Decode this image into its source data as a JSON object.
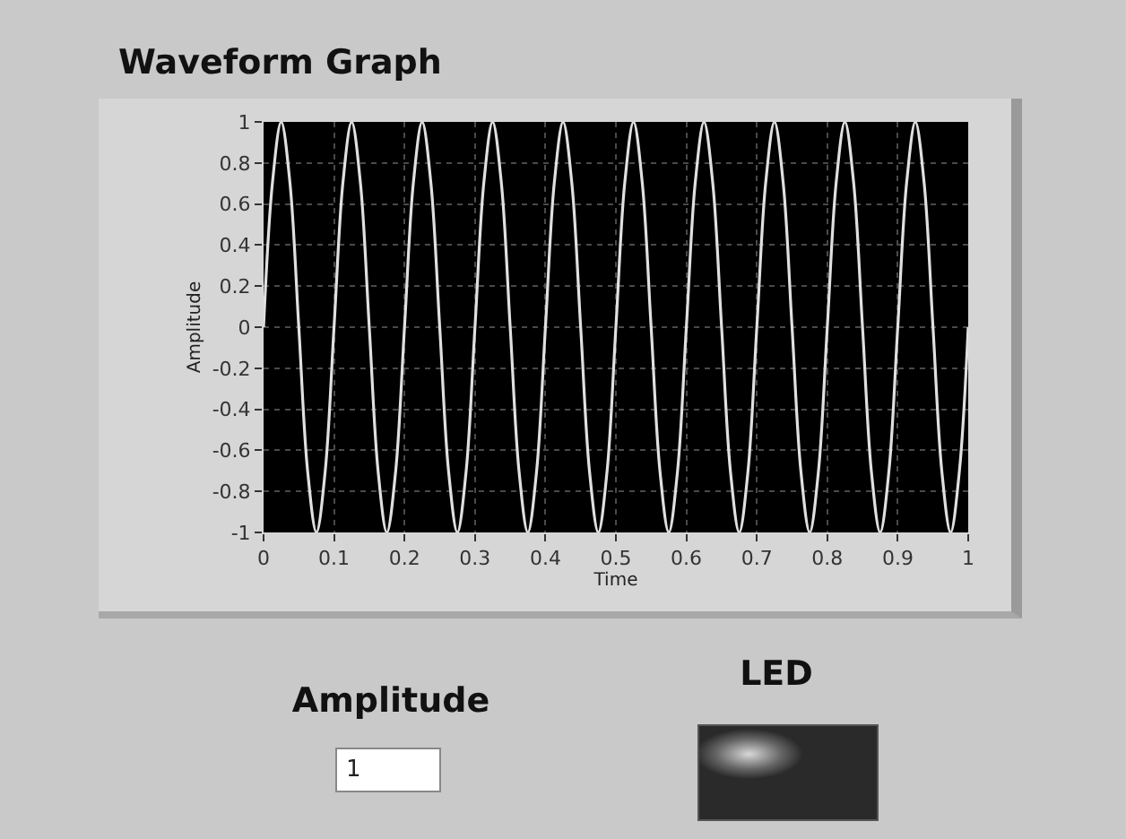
{
  "chart_data": {
    "type": "line",
    "title": "Waveform Graph",
    "xlabel": "Time",
    "ylabel": "Amplitude",
    "annotations": [
      "Amplitude",
      "1",
      "LED"
    ],
    "x": [
      0,
      0.0125,
      0.025,
      0.0375,
      0.05,
      0.0625,
      0.075,
      0.0875,
      0.1,
      0.1125,
      0.125,
      0.1375,
      0.15,
      0.1625,
      0.175,
      0.1875,
      0.2,
      0.2125,
      0.225,
      0.2375,
      0.25,
      0.2625,
      0.275,
      0.2875,
      0.3,
      0.3125,
      0.325,
      0.3375,
      0.35,
      0.3625,
      0.375,
      0.3875,
      0.4,
      0.4125,
      0.425,
      0.4375,
      0.45,
      0.4625,
      0.475,
      0.4875,
      0.5,
      0.5125,
      0.525,
      0.5375,
      0.55,
      0.5625,
      0.575,
      0.5875,
      0.6,
      0.6125,
      0.625,
      0.6375,
      0.65,
      0.6625,
      0.675,
      0.6875,
      0.7,
      0.7125,
      0.725,
      0.7375,
      0.75,
      0.7625,
      0.775,
      0.7875,
      0.8,
      0.8125,
      0.825,
      0.8375,
      0.85,
      0.8625,
      0.875,
      0.8875,
      0.9,
      0.9125,
      0.925,
      0.9375,
      0.95,
      0.9625,
      0.975,
      0.9875,
      1
    ],
    "series": [
      {
        "color": "#e0e0e0",
        "values": [
          0,
          0.7,
          1,
          0.7,
          0,
          -0.7,
          -1,
          -0.7,
          0,
          0.7,
          1,
          0.7,
          0,
          -0.7,
          -1,
          -0.7,
          0,
          0.7,
          1,
          0.7,
          0,
          -0.7,
          -1,
          -0.7,
          0,
          0.7,
          1,
          0.7,
          0,
          -0.7,
          -1,
          -0.7,
          0,
          0.7,
          1,
          0.7,
          0,
          -0.7,
          -1,
          -0.7,
          0,
          0.7,
          1,
          0.7,
          0,
          -0.7,
          -1,
          -0.7,
          0,
          0.7,
          1,
          0.7,
          0,
          -0.7,
          -1,
          -0.7,
          0,
          0.7,
          1,
          0.7,
          0,
          -0.7,
          -1,
          -0.7,
          0,
          0.7,
          1,
          0.7,
          0,
          -0.7,
          -1,
          -0.7,
          0,
          0.7,
          1,
          0.7,
          0,
          -0.7,
          -1,
          -0.7,
          0
        ]
      }
    ],
    "xlim": [
      0,
      1
    ],
    "xticks": [
      0,
      0.1,
      0.2,
      0.3,
      0.4,
      0.5,
      0.6,
      0.7,
      0.8,
      0.9,
      1
    ],
    "ylim": [
      -1,
      1
    ],
    "yticks": [
      -1,
      -0.8,
      -0.6,
      -0.4,
      -0.2,
      0,
      0.2,
      0.4,
      0.6,
      0.8,
      1
    ],
    "grid": true,
    "marker": "none",
    "line_style": "solid"
  }
}
